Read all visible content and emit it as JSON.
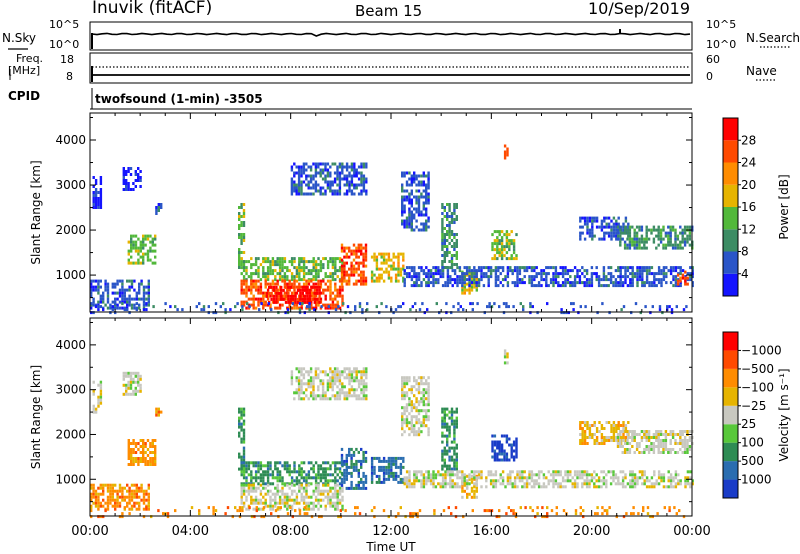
{
  "header": {
    "station": "Inuvik (fitACF)",
    "beam": "Beam 15",
    "date": "10/Sep/2019"
  },
  "noise_panel": {
    "left_label": "N.Sky",
    "right_label": "N.Search",
    "left_ticks": [
      "10^5",
      "10^0"
    ],
    "right_ticks": [
      "10^5",
      "10^0"
    ]
  },
  "freq_panel": {
    "left_label_line1": "Freq.",
    "left_label_line2": "[MHz]",
    "right_label": "Nave",
    "left_ticks": [
      "18",
      "8"
    ],
    "right_ticks": [
      "60",
      "0"
    ]
  },
  "cpid": {
    "label": "CPID",
    "program": "twofsound (1-min) -3505"
  },
  "x_axis": {
    "label": "Time UT",
    "tick_labels": [
      "00:00",
      "04:00",
      "08:00",
      "12:00",
      "16:00",
      "20:00",
      "00:00"
    ]
  },
  "chart_data": [
    {
      "type": "heatmap",
      "panel": "power",
      "ylabel": "Slant Range [km]",
      "yticks": [
        1000,
        2000,
        3000,
        4000
      ],
      "ylim": [
        180,
        4600
      ],
      "xlim_hours": [
        0,
        24
      ],
      "colorbar": {
        "label": "Power [dB]",
        "tick_labels": [
          "4",
          "8",
          "12",
          "16",
          "20",
          "24",
          "28"
        ],
        "colors": [
          "#1414ff",
          "#2a55c8",
          "#3c8c64",
          "#52b83a",
          "#e6b400",
          "#ff8c00",
          "#ff4a00",
          "#ff0000"
        ]
      },
      "regions": [
        {
          "t": [
            0.0,
            2.3
          ],
          "r": [
            300,
            900
          ],
          "level": 1
        },
        {
          "t": [
            0.1,
            0.4
          ],
          "r": [
            2500,
            3200
          ],
          "level": 0
        },
        {
          "t": [
            1.3,
            2.0
          ],
          "r": [
            2900,
            3400
          ],
          "level": 0
        },
        {
          "t": [
            1.5,
            2.6
          ],
          "r": [
            1300,
            1900
          ],
          "level": 3
        },
        {
          "t": [
            2.6,
            2.8
          ],
          "r": [
            2400,
            2600
          ],
          "level": 1
        },
        {
          "t": [
            5.9,
            6.1
          ],
          "r": [
            1200,
            2600
          ],
          "level": 3
        },
        {
          "t": [
            6.0,
            10.1
          ],
          "r": [
            900,
            1400
          ],
          "level": 3
        },
        {
          "t": [
            6.0,
            10.1
          ],
          "r": [
            300,
            900
          ],
          "level": 6
        },
        {
          "t": [
            7.0,
            9.2
          ],
          "r": [
            420,
            760
          ],
          "level": 7
        },
        {
          "t": [
            8.0,
            11.0
          ],
          "r": [
            2800,
            3500
          ],
          "level": 1
        },
        {
          "t": [
            10.0,
            11.0
          ],
          "r": [
            800,
            1700
          ],
          "level": 6
        },
        {
          "t": [
            11.2,
            12.5
          ],
          "r": [
            900,
            1500
          ],
          "level": 4
        },
        {
          "t": [
            12.4,
            13.5
          ],
          "r": [
            2000,
            3300
          ],
          "level": 1
        },
        {
          "t": [
            14.0,
            14.6
          ],
          "r": [
            1200,
            2600
          ],
          "level": 2
        },
        {
          "t": [
            14.8,
            15.4
          ],
          "r": [
            600,
            1100
          ],
          "level": 4
        },
        {
          "t": [
            16.0,
            17.0
          ],
          "r": [
            1400,
            2000
          ],
          "level": 3
        },
        {
          "t": [
            16.5,
            16.6
          ],
          "r": [
            3600,
            3900
          ],
          "level": 6
        },
        {
          "t": [
            19.5,
            21.5
          ],
          "r": [
            1800,
            2300
          ],
          "level": 1
        },
        {
          "t": [
            21.0,
            24.0
          ],
          "r": [
            1600,
            2100
          ],
          "level": 2
        },
        {
          "t": [
            12.5,
            24.0
          ],
          "r": [
            800,
            1200
          ],
          "level": 1
        },
        {
          "t": [
            23.4,
            23.8
          ],
          "r": [
            800,
            1100
          ],
          "level": 6
        },
        {
          "t": [
            0.0,
            24.0
          ],
          "r": [
            180,
            400
          ],
          "level": 1
        }
      ]
    },
    {
      "type": "heatmap",
      "panel": "velocity",
      "ylabel": "Slant Range [km]",
      "yticks": [
        1000,
        2000,
        3000,
        4000
      ],
      "ylim": [
        180,
        4600
      ],
      "xlim_hours": [
        0,
        24
      ],
      "colorbar": {
        "label": "Velocity [m s⁻¹]",
        "tick_labels": [
          "1000",
          "500",
          "100",
          "25",
          "−25",
          "−100",
          "−500",
          "−1000"
        ],
        "colors": [
          "#1a3cc8",
          "#2a6db0",
          "#2e8c54",
          "#58c83a",
          "#c8c8c0",
          "#e6b400",
          "#ff8c00",
          "#ff4a00",
          "#ff0000"
        ]
      },
      "regions": [
        {
          "t": [
            0.0,
            2.3
          ],
          "r": [
            300,
            900
          ],
          "level": 6
        },
        {
          "t": [
            0.1,
            0.4
          ],
          "r": [
            2500,
            3200
          ],
          "level": 4
        },
        {
          "t": [
            1.3,
            2.0
          ],
          "r": [
            2900,
            3400
          ],
          "level": 4
        },
        {
          "t": [
            1.5,
            2.6
          ],
          "r": [
            1300,
            1900
          ],
          "level": 6
        },
        {
          "t": [
            2.6,
            2.8
          ],
          "r": [
            2400,
            2600
          ],
          "level": 6
        },
        {
          "t": [
            5.9,
            6.1
          ],
          "r": [
            1200,
            2600
          ],
          "level": 2
        },
        {
          "t": [
            6.0,
            10.1
          ],
          "r": [
            900,
            1400
          ],
          "level": 2
        },
        {
          "t": [
            6.0,
            10.1
          ],
          "r": [
            300,
            900
          ],
          "level": 4
        },
        {
          "t": [
            8.0,
            11.0
          ],
          "r": [
            2800,
            3500
          ],
          "level": 4
        },
        {
          "t": [
            10.0,
            11.0
          ],
          "r": [
            800,
            1700
          ],
          "level": 1
        },
        {
          "t": [
            11.2,
            12.5
          ],
          "r": [
            900,
            1500
          ],
          "level": 1
        },
        {
          "t": [
            12.4,
            13.5
          ],
          "r": [
            2000,
            3300
          ],
          "level": 4
        },
        {
          "t": [
            14.0,
            14.6
          ],
          "r": [
            1200,
            2600
          ],
          "level": 2
        },
        {
          "t": [
            14.8,
            15.4
          ],
          "r": [
            600,
            1100
          ],
          "level": 5
        },
        {
          "t": [
            16.0,
            17.0
          ],
          "r": [
            1400,
            2000
          ],
          "level": 0
        },
        {
          "t": [
            16.5,
            16.6
          ],
          "r": [
            3600,
            3900
          ],
          "level": 4
        },
        {
          "t": [
            19.5,
            21.5
          ],
          "r": [
            1800,
            2300
          ],
          "level": 5
        },
        {
          "t": [
            21.0,
            24.0
          ],
          "r": [
            1600,
            2100
          ],
          "level": 4
        },
        {
          "t": [
            12.5,
            24.0
          ],
          "r": [
            800,
            1200
          ],
          "level": 4
        },
        {
          "t": [
            0.0,
            24.0
          ],
          "r": [
            180,
            400
          ],
          "level": 6
        }
      ]
    }
  ]
}
